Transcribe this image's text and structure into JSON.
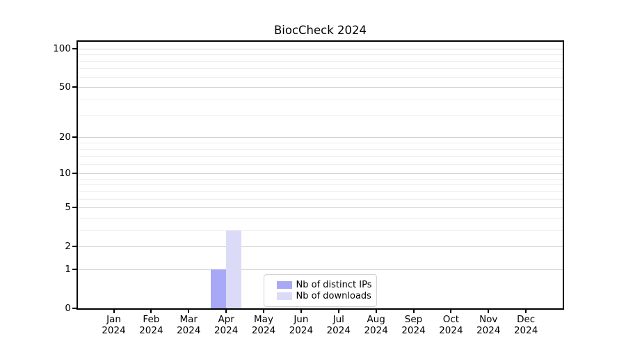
{
  "chart_data": {
    "type": "bar",
    "title": "BiocCheck 2024",
    "categories": [
      "Jan",
      "Feb",
      "Mar",
      "Apr",
      "May",
      "Jun",
      "Jul",
      "Aug",
      "Sep",
      "Oct",
      "Nov",
      "Dec"
    ],
    "category_year": "2024",
    "series": [
      {
        "name": "Nb of distinct IPs",
        "color": "#a8a8f6",
        "values": [
          0,
          0,
          0,
          1,
          0,
          0,
          0,
          0,
          0,
          0,
          0,
          0
        ]
      },
      {
        "name": "Nb of downloads",
        "color": "#dbdbf8",
        "values": [
          0,
          0,
          0,
          3,
          0,
          0,
          0,
          0,
          0,
          0,
          0,
          0
        ]
      }
    ],
    "xlabel": "",
    "ylabel": "",
    "y_scale": "log10(1+x)",
    "y_ticks": [
      0,
      1,
      2,
      5,
      10,
      20,
      50,
      100
    ],
    "y_minor_gridlines": [
      3,
      4,
      6,
      7,
      8,
      9,
      12,
      14,
      16,
      18,
      30,
      40,
      60,
      70,
      80,
      90
    ],
    "ylim": [
      0,
      113
    ],
    "grid": true,
    "legend_position": "lower center"
  },
  "colors": {
    "grid_major": "#d2d2d2",
    "grid_minor": "#ededed",
    "axis": "#000000",
    "legend_border": "#d2d2d2",
    "background": "#ffffff"
  }
}
